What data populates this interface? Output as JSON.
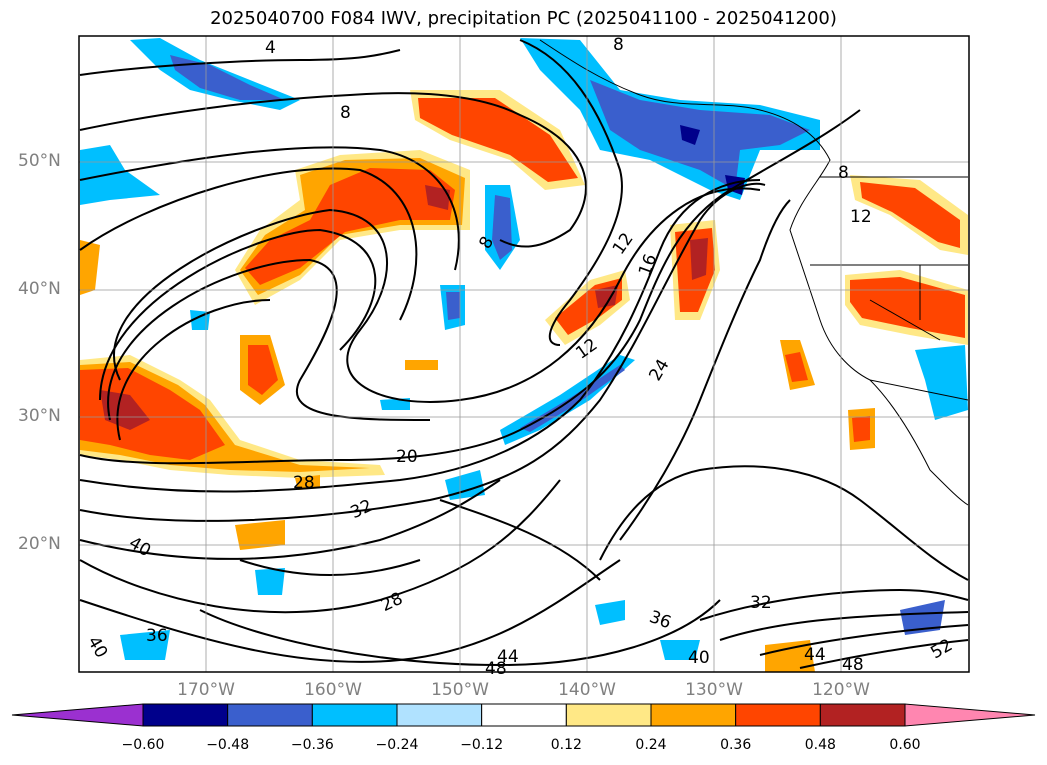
{
  "title": "2025040700 F084 IWV, precipitation PC (2025041100 - 2025041200)",
  "map": {
    "lat_labels": [
      "50°N",
      "40°N",
      "30°N",
      "20°N"
    ],
    "lon_labels": [
      "170°W",
      "160°W",
      "150°W",
      "140°W",
      "130°W",
      "120°W"
    ],
    "contour_labels": [
      "4",
      "8",
      "8",
      "8",
      "12",
      "12",
      "16",
      "20",
      "24",
      "28",
      "28",
      "32",
      "32",
      "36",
      "36",
      "40",
      "40",
      "40",
      "44",
      "44",
      "48",
      "48",
      "52",
      "8",
      "12"
    ]
  },
  "colorbar": {
    "ticks": [
      "−0.60",
      "−0.48",
      "−0.36",
      "−0.24",
      "−0.12",
      "0.12",
      "0.24",
      "0.36",
      "0.48",
      "0.60"
    ],
    "colors": [
      "#9b30d0",
      "#00008b",
      "#3a5fcd",
      "#00bfff",
      "#b0e2ff",
      "#ffffff",
      "#ffe886",
      "#ffa500",
      "#ff4500",
      "#b22222",
      "#ff86b0"
    ]
  }
}
